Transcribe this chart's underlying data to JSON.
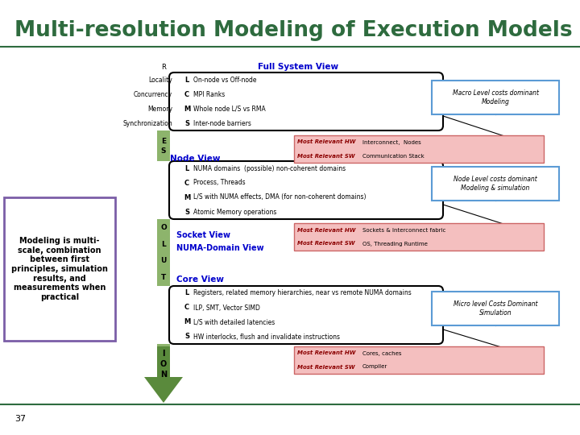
{
  "title": "Multi-resolution Modeling of Execution Models",
  "title_color": "#2E6B3E",
  "bg_color": "#FFFFFF",
  "slide_number": "37",
  "divider_color": "#2E6B3E",
  "green_bar_color": "#8DB46C",
  "arrow_color": "#5A8A3C",
  "hw_bg": "#F4BFBF",
  "hw_border": "#CC6666",
  "right_box_border": "#5B9BD5",
  "left_box_border": "#7B5EA7",
  "left_box_text": "Modeling is multi-\nscale, combination\nbetween first\nprinciples, simulation\nresults, and\nmeasurements when\npractical",
  "full_system_items": [
    [
      "Locality",
      "L",
      "On-node vs Off-node"
    ],
    [
      "Concurrency",
      "C",
      "MPI Ranks"
    ],
    [
      "Memory",
      "M",
      "Whole node L/S vs RMA"
    ],
    [
      "Synchronization",
      "S",
      "Inter-node barriers"
    ]
  ],
  "node_items": [
    [
      "",
      "L",
      "NUMA domains  (possible) non-coherent domains"
    ],
    [
      "",
      "C",
      "Process, Threads"
    ],
    [
      "",
      "M",
      "L/S with NUMA effects, DMA (for non-coherent domains)"
    ],
    [
      "",
      "S",
      "Atomic Memory operations"
    ]
  ],
  "core_items": [
    [
      "",
      "L",
      "Registers, related memory hierarchies, near vs remote NUMA domains"
    ],
    [
      "",
      "C",
      "ILP, SMT, Vector SIMD"
    ],
    [
      "",
      "M",
      "L/S with detailed latencies"
    ],
    [
      "",
      "S",
      "HW interlocks, flush and invalidate instructions"
    ]
  ],
  "full_hw": "Interconnect,  Nodes",
  "full_sw": "Communication Stack",
  "node_hw": "Sockets & Interconnect fabric",
  "node_sw": "OS, Threading Runtime",
  "core_hw": "Cores, caches",
  "core_sw": "Compiler",
  "full_right": "Macro Level costs dominant\nModeling",
  "node_right": "Node Level costs dominant\nModeling & simulation",
  "core_right": "Micro level Costs Dominant\nSimulation"
}
